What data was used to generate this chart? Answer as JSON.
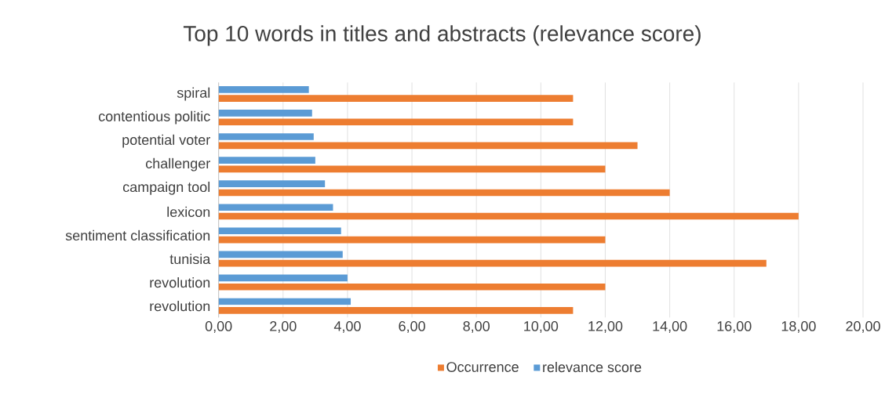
{
  "chart_data": {
    "type": "bar",
    "orientation": "horizontal",
    "title": "Top 10 words in titles and abstracts (relevance score)",
    "categories": [
      "spiral",
      "contentious politic",
      "potential voter",
      "challenger",
      "campaign tool",
      "lexicon",
      "sentiment classification",
      "tunisia",
      "revolution",
      "revolution"
    ],
    "series": [
      {
        "name": "Occurrence",
        "color": "#ed7d31",
        "values": [
          11,
          11,
          13,
          12,
          14,
          18,
          12,
          17,
          12,
          11
        ]
      },
      {
        "name": "relevance score",
        "color": "#5b9bd5",
        "values": [
          2.8,
          2.9,
          2.95,
          3.0,
          3.3,
          3.55,
          3.8,
          3.85,
          4.0,
          4.1
        ]
      }
    ],
    "xlim": [
      0,
      20
    ],
    "xticks": [
      {
        "value": 0,
        "label": "0,00"
      },
      {
        "value": 2,
        "label": "2,00"
      },
      {
        "value": 4,
        "label": "4,00"
      },
      {
        "value": 6,
        "label": "6,00"
      },
      {
        "value": 8,
        "label": "8,00"
      },
      {
        "value": 10,
        "label": "10,00"
      },
      {
        "value": 12,
        "label": "12,00"
      },
      {
        "value": 14,
        "label": "14,00"
      },
      {
        "value": 16,
        "label": "16,00"
      },
      {
        "value": 18,
        "label": "18,00"
      },
      {
        "value": 20,
        "label": "20,00"
      }
    ],
    "grid": "x",
    "legend": "bottom"
  }
}
